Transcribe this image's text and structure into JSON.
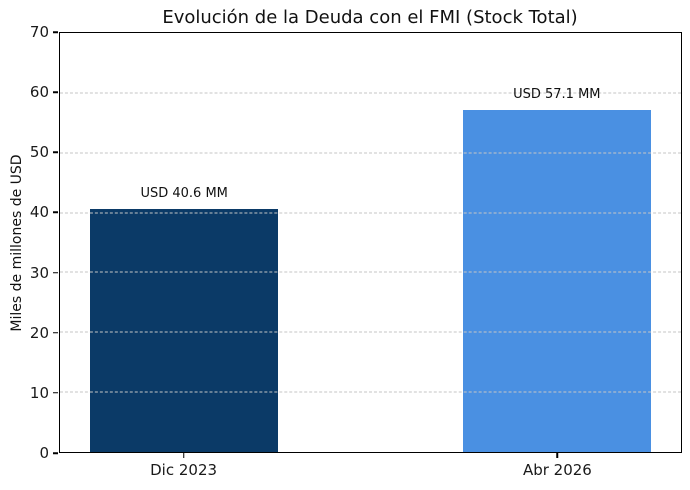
{
  "chart_data": {
    "type": "bar",
    "title": "Evolución de la Deuda con el FMI (Stock Total)",
    "xlabel": "",
    "ylabel": "Miles de millones de USD",
    "categories": [
      "Dic 2023",
      "Abr 2026"
    ],
    "values": [
      40.6,
      57.1
    ],
    "bar_labels": [
      "USD 40.6 MM",
      "USD 57.1 MM"
    ],
    "bar_colors": [
      "#0b3a67",
      "#4a90e2"
    ],
    "ylim": [
      0,
      70
    ],
    "yticks": [
      0,
      10,
      20,
      30,
      40,
      50,
      60,
      70
    ],
    "grid": "horizontal dashed gridlines drawn above bars",
    "gridline_color": "#c6c6c6",
    "spine_color": "#000000",
    "legend": "none",
    "background_color": "#ffffff"
  }
}
